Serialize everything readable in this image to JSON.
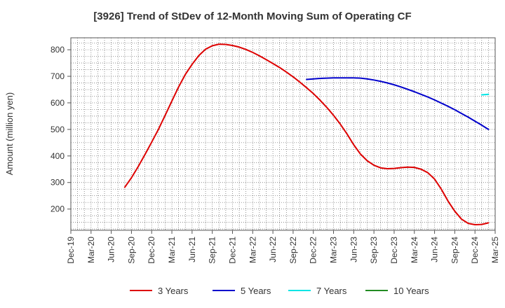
{
  "chart_data": {
    "type": "line",
    "title": "[3926]  Trend of StDev of 12-Month Moving Sum of Operating CF",
    "ylabel": "Amount (million yen)",
    "xlabel": "",
    "ylim": [
      120,
      845
    ],
    "y_ticks": [
      200,
      300,
      400,
      500,
      600,
      700,
      800
    ],
    "x_ticks": [
      "Dec-19",
      "Mar-20",
      "Jun-20",
      "Sep-20",
      "Dec-20",
      "Mar-21",
      "Jun-21",
      "Sep-21",
      "Dec-21",
      "Mar-22",
      "Jun-22",
      "Sep-22",
      "Dec-22",
      "Mar-23",
      "Jun-23",
      "Sep-23",
      "Dec-23",
      "Mar-24",
      "Jun-24",
      "Sep-24",
      "Dec-24",
      "Mar-25"
    ],
    "x_axis": "quarterly, Dec-19 to Mar-25",
    "grid": "dotted",
    "legend_position": "bottom",
    "series": [
      {
        "name": "3 Years",
        "color": "#dd0000",
        "points": [
          [
            "2020-08-31",
            282
          ],
          [
            "2020-09-30",
            318
          ],
          [
            "2020-10-31",
            360
          ],
          [
            "2020-11-30",
            405
          ],
          [
            "2020-12-31",
            452
          ],
          [
            "2021-01-31",
            500
          ],
          [
            "2021-02-28",
            553
          ],
          [
            "2021-03-31",
            607
          ],
          [
            "2021-04-30",
            660
          ],
          [
            "2021-05-31",
            707
          ],
          [
            "2021-06-30",
            745
          ],
          [
            "2021-07-31",
            778
          ],
          [
            "2021-08-31",
            802
          ],
          [
            "2021-09-30",
            815
          ],
          [
            "2021-10-31",
            821
          ],
          [
            "2021-11-30",
            820
          ],
          [
            "2021-12-31",
            816
          ],
          [
            "2022-01-31",
            810
          ],
          [
            "2022-02-28",
            801
          ],
          [
            "2022-03-31",
            790
          ],
          [
            "2022-04-30",
            777
          ],
          [
            "2022-05-31",
            763
          ],
          [
            "2022-06-30",
            748
          ],
          [
            "2022-07-31",
            733
          ],
          [
            "2022-08-31",
            716
          ],
          [
            "2022-09-30",
            698
          ],
          [
            "2022-10-31",
            678
          ],
          [
            "2022-11-30",
            657
          ],
          [
            "2022-12-31",
            635
          ],
          [
            "2023-01-31",
            610
          ],
          [
            "2023-02-28",
            583
          ],
          [
            "2023-03-31",
            553
          ],
          [
            "2023-04-30",
            520
          ],
          [
            "2023-05-31",
            483
          ],
          [
            "2023-06-30",
            442
          ],
          [
            "2023-07-31",
            407
          ],
          [
            "2023-08-31",
            382
          ],
          [
            "2023-09-30",
            365
          ],
          [
            "2023-10-31",
            355
          ],
          [
            "2023-11-30",
            352
          ],
          [
            "2023-12-31",
            353
          ],
          [
            "2024-01-31",
            356
          ],
          [
            "2024-02-29",
            358
          ],
          [
            "2024-03-31",
            357
          ],
          [
            "2024-04-30",
            350
          ],
          [
            "2024-05-31",
            337
          ],
          [
            "2024-06-30",
            313
          ],
          [
            "2024-07-31",
            275
          ],
          [
            "2024-08-31",
            230
          ],
          [
            "2024-09-30",
            192
          ],
          [
            "2024-10-31",
            162
          ],
          [
            "2024-11-30",
            146
          ],
          [
            "2024-12-31",
            141
          ],
          [
            "2025-01-31",
            142
          ],
          [
            "2025-02-28",
            148
          ]
        ]
      },
      {
        "name": "5 Years",
        "color": "#0000cc",
        "points": [
          [
            "2022-11-30",
            688
          ],
          [
            "2022-12-31",
            690
          ],
          [
            "2023-01-31",
            692
          ],
          [
            "2023-02-28",
            693
          ],
          [
            "2023-03-31",
            694
          ],
          [
            "2023-04-30",
            694
          ],
          [
            "2023-05-31",
            694
          ],
          [
            "2023-06-30",
            694
          ],
          [
            "2023-07-31",
            693
          ],
          [
            "2023-08-31",
            690
          ],
          [
            "2023-09-30",
            686
          ],
          [
            "2023-10-31",
            681
          ],
          [
            "2023-11-30",
            675
          ],
          [
            "2023-12-31",
            668
          ],
          [
            "2024-01-31",
            660
          ],
          [
            "2024-02-29",
            651
          ],
          [
            "2024-03-31",
            642
          ],
          [
            "2024-04-30",
            632
          ],
          [
            "2024-05-31",
            622
          ],
          [
            "2024-06-30",
            611
          ],
          [
            "2024-07-31",
            599
          ],
          [
            "2024-08-31",
            587
          ],
          [
            "2024-09-30",
            574
          ],
          [
            "2024-10-31",
            560
          ],
          [
            "2024-11-30",
            546
          ],
          [
            "2024-12-31",
            531
          ],
          [
            "2025-01-31",
            516
          ],
          [
            "2025-02-28",
            500
          ]
        ]
      },
      {
        "name": "7 Years",
        "color": "#00e5e5",
        "points": [
          [
            "2025-01-31",
            630
          ],
          [
            "2025-02-28",
            632
          ]
        ]
      },
      {
        "name": "10 Years",
        "color": "#228b22",
        "points": []
      }
    ]
  }
}
